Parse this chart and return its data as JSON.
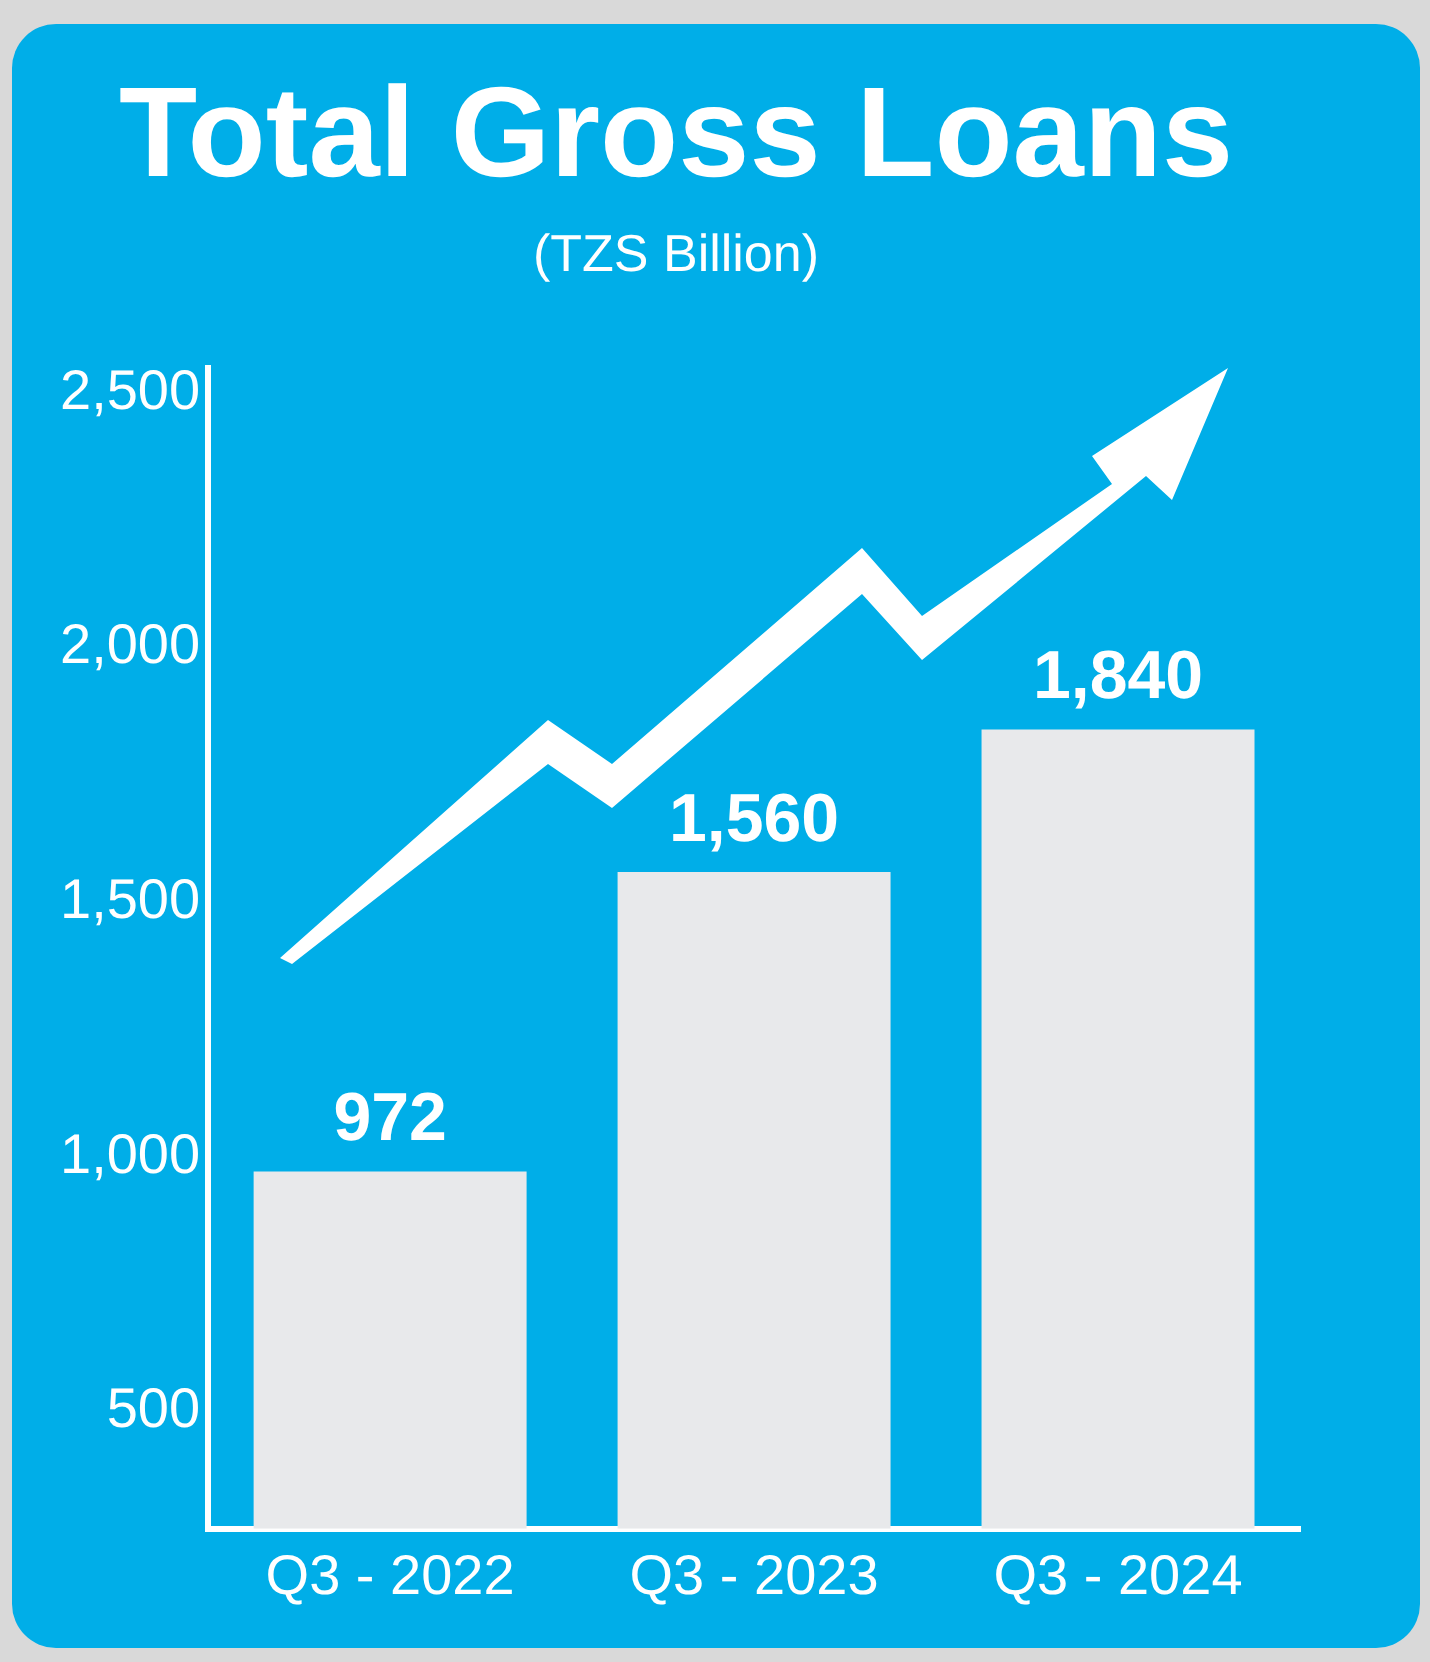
{
  "chart_data": {
    "type": "bar",
    "title": "Total Gross Loans",
    "subtitle": "(TZS Billion)",
    "categories": [
      "Q3 - 2022",
      "Q3 - 2023",
      "Q3 - 2024"
    ],
    "values": [
      972,
      1560,
      1840
    ],
    "color": "#e8e9eb",
    "ylim": [
      270,
      2550
    ],
    "yticks": [
      {
        "value": 500,
        "label": "500"
      },
      {
        "value": 1000,
        "label": "1,000"
      },
      {
        "value": 1500,
        "label": "1,500"
      },
      {
        "value": 2000,
        "label": "2,000"
      },
      {
        "value": 2500,
        "label": "2,500"
      }
    ],
    "value_labels": [
      "972",
      "1,560",
      "1,840"
    ],
    "grid": false,
    "legend": false
  }
}
